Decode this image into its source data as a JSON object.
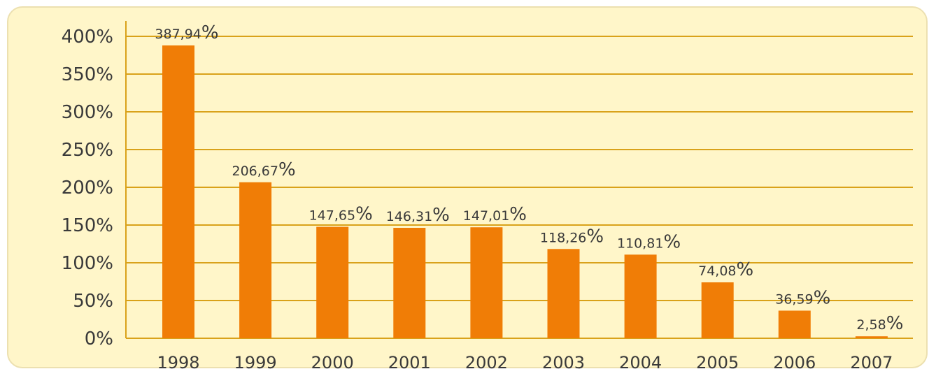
{
  "chart_data": {
    "type": "bar",
    "title": "",
    "xlabel": "",
    "ylabel": "",
    "categories": [
      "1998",
      "1999",
      "2000",
      "2001",
      "2002",
      "2003",
      "2004",
      "2005",
      "2006",
      "2007"
    ],
    "values": [
      387.94,
      206.67,
      147.65,
      146.31,
      147.01,
      118.26,
      110.81,
      74.08,
      36.59,
      2.58
    ],
    "data_labels": [
      "387,94%",
      "206,67%",
      "147,65%",
      "146,31%",
      "147,01%",
      "118,26%",
      "110,81%",
      "74,08%",
      "36,59%",
      "2,58%"
    ],
    "ylim": [
      0,
      400
    ],
    "yticks": [
      0,
      50,
      100,
      150,
      200,
      250,
      300,
      350,
      400
    ],
    "ytick_labels": [
      "0%",
      "50%",
      "100%",
      "150%",
      "200%",
      "250%",
      "300%",
      "350%",
      "400%"
    ],
    "grid": true,
    "legend": "none",
    "colors": {
      "bar": "#f07d06",
      "gridline": "#d9a21a",
      "background": "#fff6c9",
      "border": "#ece0b0",
      "text": "#3a3a3a"
    }
  }
}
